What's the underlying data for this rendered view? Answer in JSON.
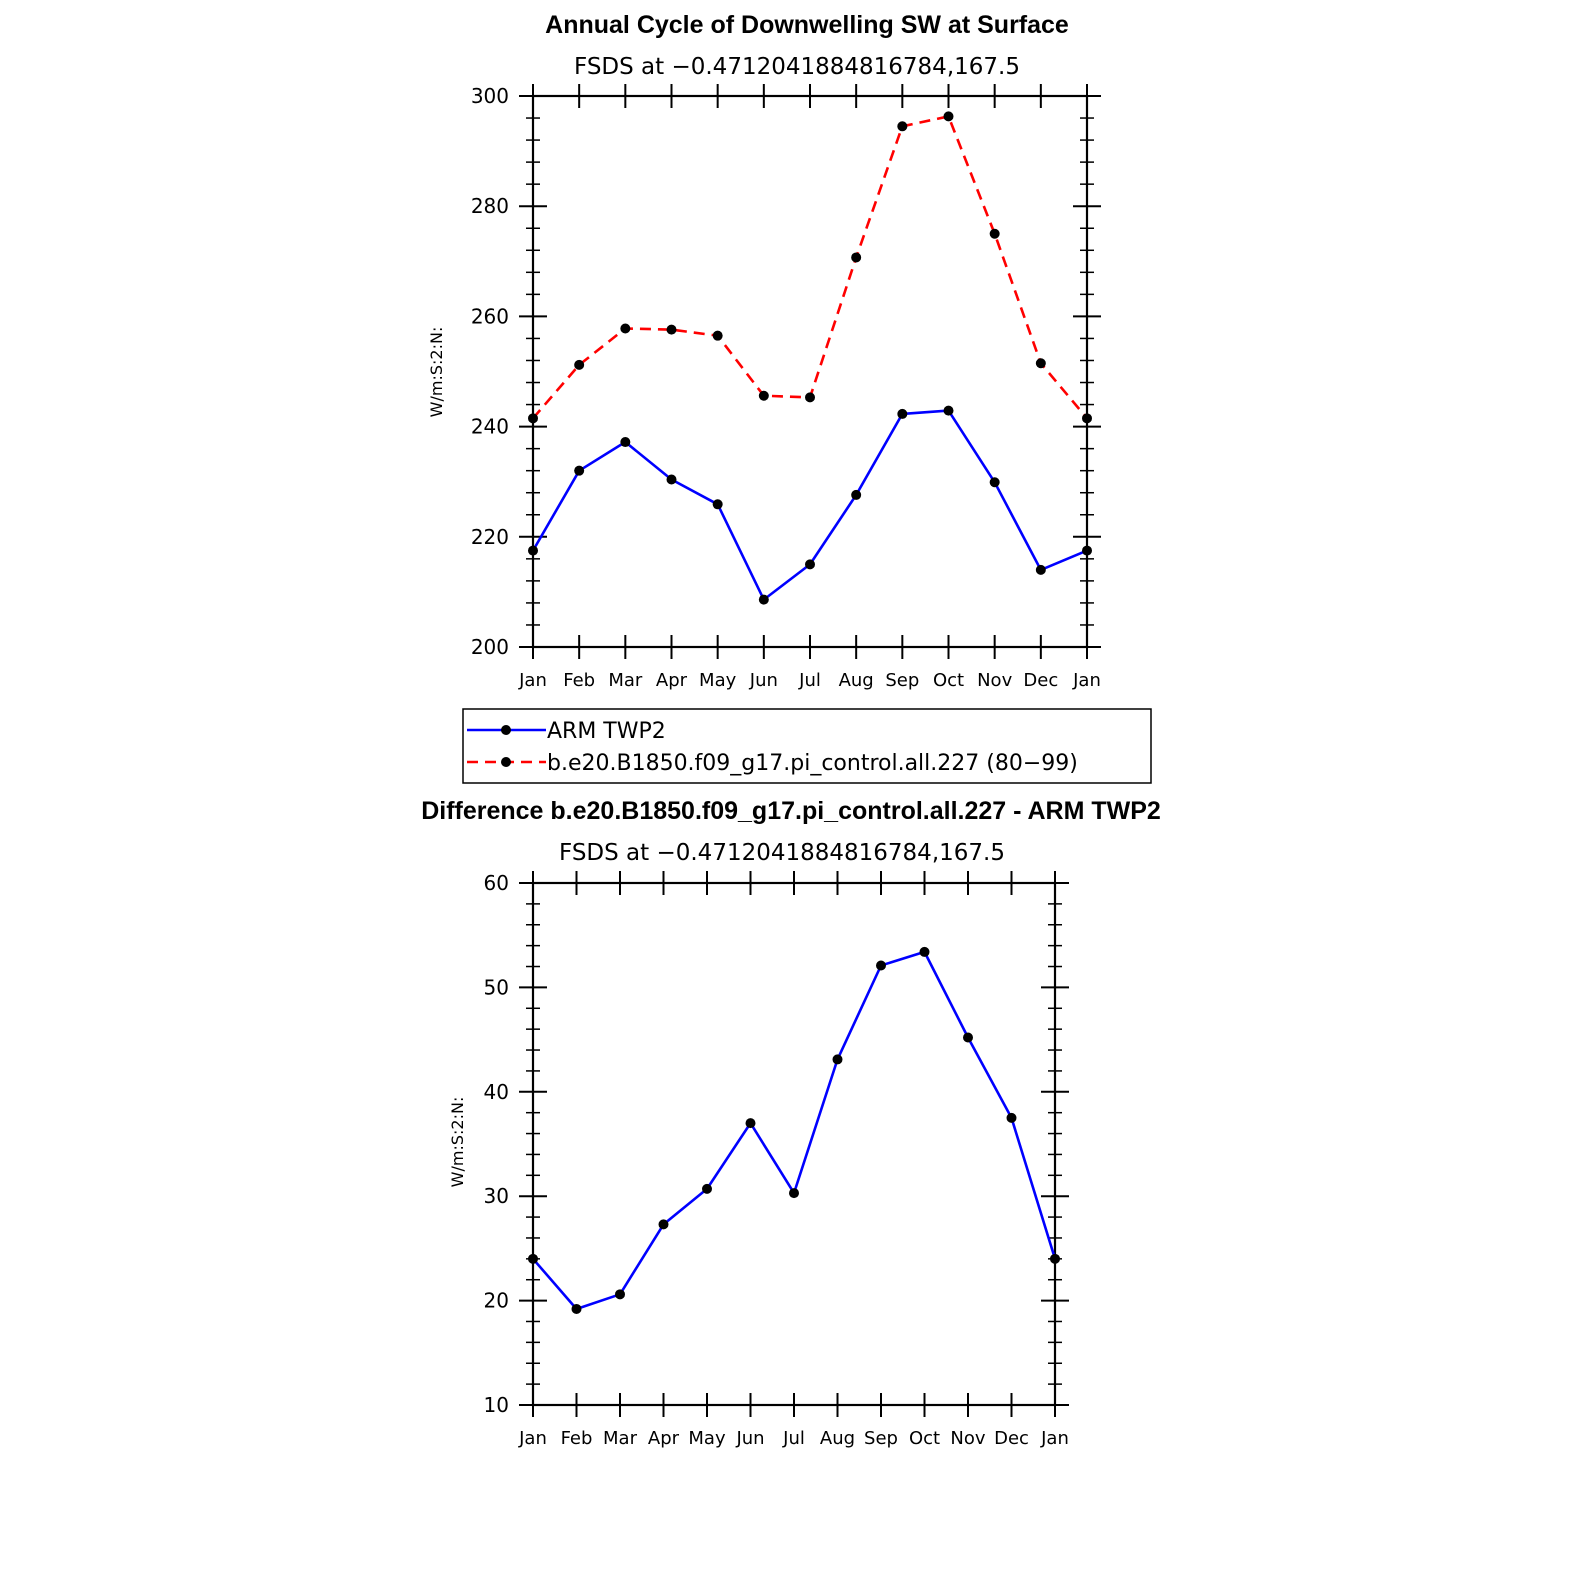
{
  "chart_data": [
    {
      "type": "line",
      "title": "Annual Cycle of Downwelling SW at Surface",
      "subtitle": "FSDS at −0.4712041884816784,167.5",
      "xlabel": "",
      "ylabel": "W/m:S:2:N:",
      "ylim": [
        200,
        300
      ],
      "yticks": [
        "200",
        "220",
        "240",
        "260",
        "280",
        "300"
      ],
      "categories": [
        "Jan",
        "Feb",
        "Mar",
        "Apr",
        "May",
        "Jun",
        "Jul",
        "Aug",
        "Sep",
        "Oct",
        "Nov",
        "Dec",
        "Jan"
      ],
      "grid": false,
      "legend_position": "bottom",
      "series": [
        {
          "name": "ARM TWP2",
          "color": "#0000ff",
          "dash": "solid",
          "values": [
            217.5,
            232.0,
            237.2,
            230.4,
            225.9,
            208.6,
            215.0,
            227.6,
            242.3,
            242.9,
            229.9,
            214.0,
            217.5
          ]
        },
        {
          "name": "b.e20.B1850.f09_g17.pi_control.all.227 (80−99)",
          "color": "#ff0000",
          "dash": "dashed",
          "values": [
            241.5,
            251.2,
            257.8,
            257.6,
            256.5,
            245.6,
            245.3,
            270.7,
            294.5,
            296.3,
            275.0,
            251.5,
            241.5
          ]
        }
      ]
    },
    {
      "type": "line",
      "title": "Difference b.e20.B1850.f09_g17.pi_control.all.227 - ARM TWP2",
      "subtitle": "FSDS at −0.4712041884816784,167.5",
      "xlabel": "",
      "ylabel": "W/m:S:2:N:",
      "ylim": [
        10,
        60
      ],
      "yticks": [
        "10",
        "20",
        "30",
        "40",
        "50",
        "60"
      ],
      "categories": [
        "Jan",
        "Feb",
        "Mar",
        "Apr",
        "May",
        "Jun",
        "Jul",
        "Aug",
        "Sep",
        "Oct",
        "Nov",
        "Dec",
        "Jan"
      ],
      "grid": false,
      "series": [
        {
          "name": "difference",
          "color": "#0000ff",
          "dash": "solid",
          "values": [
            24.0,
            19.2,
            20.6,
            27.3,
            30.7,
            37.0,
            30.3,
            43.1,
            52.1,
            53.4,
            45.2,
            37.5,
            24.0
          ]
        }
      ]
    }
  ]
}
